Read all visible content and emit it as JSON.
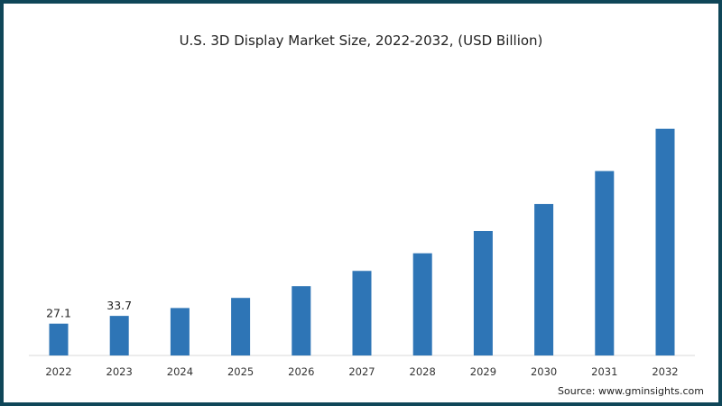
{
  "chart_data": {
    "type": "bar",
    "title": "U.S. 3D Display Market Size, 2022-2032, (USD Billion)",
    "xlabel": "",
    "ylabel": "",
    "categories": [
      "2022",
      "2023",
      "2024",
      "2025",
      "2026",
      "2027",
      "2028",
      "2029",
      "2030",
      "2031",
      "2032"
    ],
    "values": [
      27.1,
      33.7,
      40.4,
      49,
      59,
      72,
      87,
      106,
      129,
      157,
      193
    ],
    "data_labels": [
      "27.1",
      "33.7",
      "",
      "",
      "",
      "",
      "",
      "",
      "",
      "",
      ""
    ],
    "ylim": [
      0,
      200
    ],
    "grid": false,
    "bar_color": "#2e75b6",
    "source": "Source: www.gminsights.com"
  }
}
